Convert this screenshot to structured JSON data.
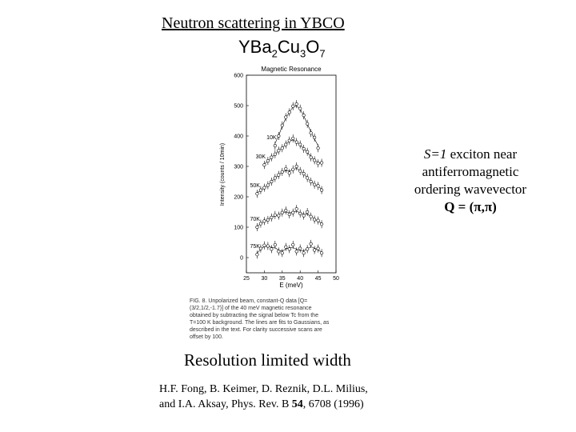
{
  "slide": {
    "title": "Neutron scattering in  YBCO",
    "formula": {
      "base": "YBa",
      "sub1": "2",
      "mid": "Cu",
      "sub2": "3",
      "end": "O",
      "sub3": "7"
    },
    "side_note": {
      "lead": "S=1",
      "line1_rest": " exciton near",
      "line2": "antiferromagnetic",
      "line3": "ordering wavevector",
      "line4": "Q = (π,π)"
    },
    "caption": "FIG. 8. Unpolarized beam, constant-Q data [Q=(3/2,1/2,-1.7)] of the 40 meV magnetic resonance obtained by subtracting the signal below Tc from the T=100 K background. The lines are fits to Gaussians, as described in the text. For clarity successive scans are offset by 100.",
    "resolution": "Resolution limited width",
    "reference": {
      "line1": "H.F. Fong, B. Keimer, D. Reznik, D.L. Milius,",
      "line2_pre": "and I.A. Aksay,  Phys. Rev. B ",
      "line2_vol": "54",
      "line2_post": ", 6708 (1996)"
    }
  },
  "chart_data": {
    "type": "scatter",
    "title": "Magnetic Resonance",
    "xlabel": "E (meV)",
    "ylabel": "Intensity (counts / 10min)",
    "xlim": [
      25,
      50
    ],
    "ylim": [
      -50,
      600
    ],
    "xticks": [
      25,
      30,
      35,
      40,
      45,
      50
    ],
    "yticks": [
      0,
      100,
      200,
      300,
      400,
      500,
      600
    ],
    "offset": 100,
    "series": [
      {
        "name": "10K",
        "points": [
          [
            33,
            368
          ],
          [
            34,
            400
          ],
          [
            35,
            435
          ],
          [
            36,
            462
          ],
          [
            37,
            478
          ],
          [
            38,
            498
          ],
          [
            39,
            505
          ],
          [
            40,
            490
          ],
          [
            41,
            468
          ],
          [
            42,
            440
          ],
          [
            43,
            410
          ],
          [
            44,
            395
          ],
          [
            45,
            360
          ]
        ]
      },
      {
        "name": "30K",
        "points": [
          [
            30,
            305
          ],
          [
            31,
            318
          ],
          [
            32,
            330
          ],
          [
            33,
            340
          ],
          [
            34,
            352
          ],
          [
            35,
            360
          ],
          [
            36,
            372
          ],
          [
            37,
            385
          ],
          [
            38,
            392
          ],
          [
            39,
            380
          ],
          [
            40,
            372
          ],
          [
            41,
            358
          ],
          [
            42,
            348
          ],
          [
            43,
            330
          ],
          [
            44,
            320
          ],
          [
            45,
            310
          ],
          [
            46,
            312
          ]
        ]
      },
      {
        "name": "50K",
        "points": [
          [
            28,
            210
          ],
          [
            29,
            222
          ],
          [
            30,
            230
          ],
          [
            31,
            238
          ],
          [
            32,
            250
          ],
          [
            33,
            262
          ],
          [
            34,
            272
          ],
          [
            35,
            282
          ],
          [
            36,
            292
          ],
          [
            37,
            278
          ],
          [
            38,
            290
          ],
          [
            39,
            300
          ],
          [
            40,
            285
          ],
          [
            41,
            276
          ],
          [
            42,
            262
          ],
          [
            43,
            250
          ],
          [
            44,
            240
          ],
          [
            45,
            236
          ],
          [
            46,
            222
          ]
        ]
      },
      {
        "name": "70K",
        "points": [
          [
            28,
            100
          ],
          [
            29,
            112
          ],
          [
            30,
            120
          ],
          [
            31,
            124
          ],
          [
            32,
            132
          ],
          [
            33,
            140
          ],
          [
            34,
            138
          ],
          [
            35,
            148
          ],
          [
            36,
            155
          ],
          [
            37,
            142
          ],
          [
            38,
            148
          ],
          [
            39,
            160
          ],
          [
            40,
            145
          ],
          [
            41,
            138
          ],
          [
            42,
            150
          ],
          [
            43,
            135
          ],
          [
            44,
            125
          ],
          [
            45,
            122
          ],
          [
            46,
            110
          ]
        ]
      },
      {
        "name": "75K",
        "points": [
          [
            28,
            10
          ],
          [
            29,
            30
          ],
          [
            30,
            40
          ],
          [
            31,
            38
          ],
          [
            32,
            28
          ],
          [
            33,
            42
          ],
          [
            34,
            20
          ],
          [
            35,
            15
          ],
          [
            36,
            35
          ],
          [
            37,
            28
          ],
          [
            38,
            42
          ],
          [
            39,
            20
          ],
          [
            40,
            30
          ],
          [
            41,
            15
          ],
          [
            42,
            28
          ],
          [
            43,
            45
          ],
          [
            44,
            25
          ],
          [
            45,
            30
          ],
          [
            46,
            15
          ]
        ]
      }
    ]
  }
}
